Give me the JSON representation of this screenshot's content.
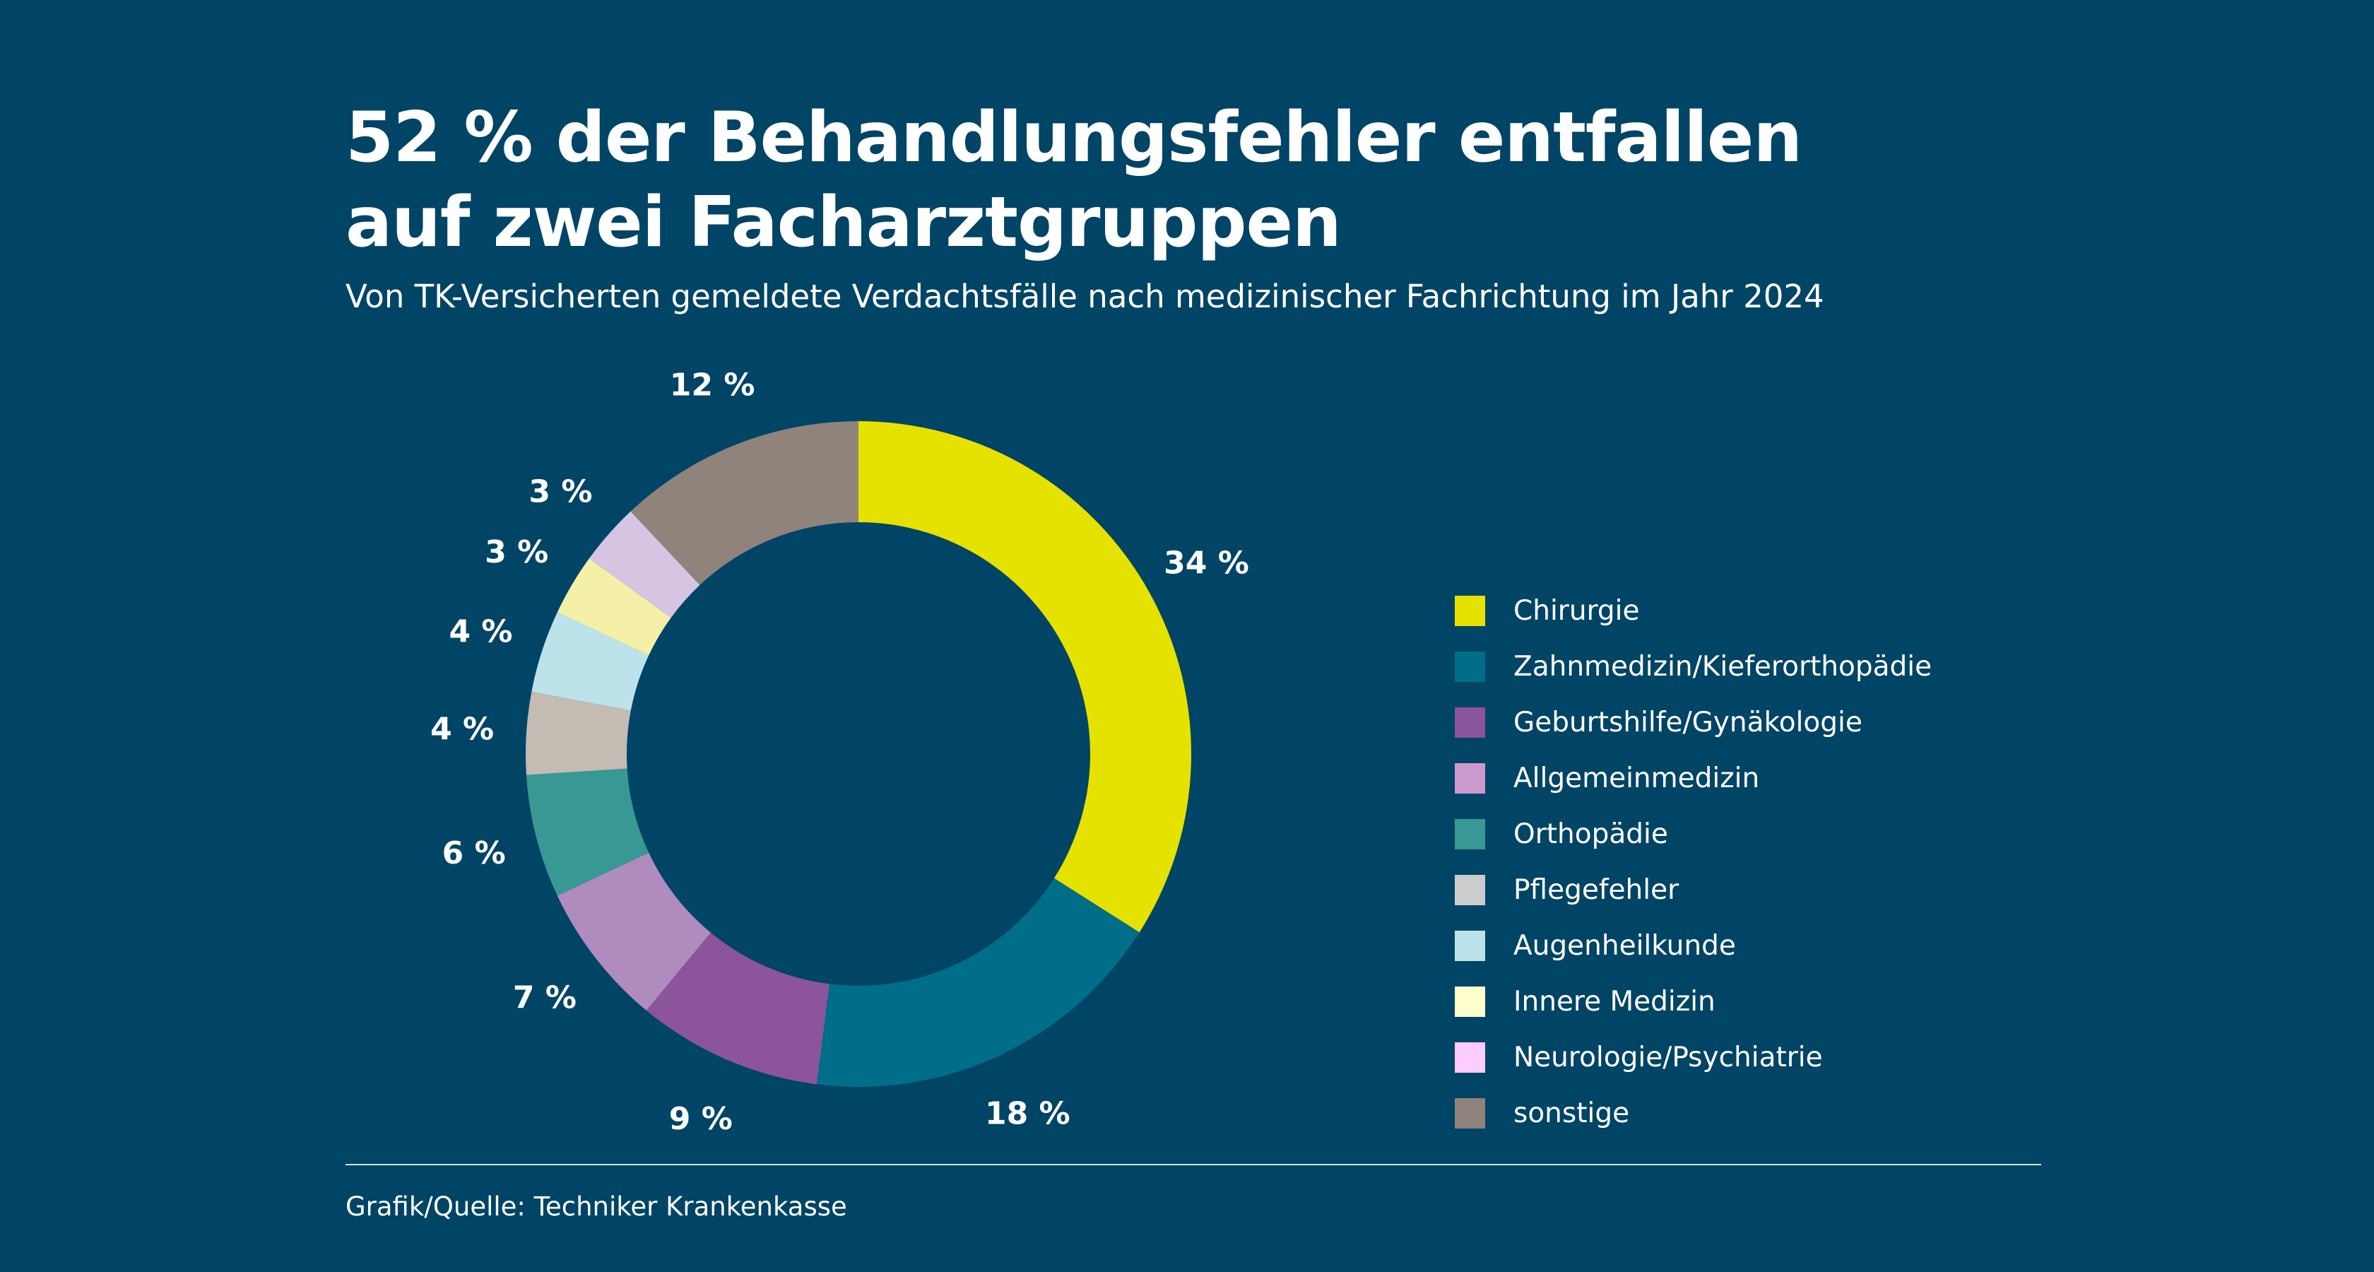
{
  "title_lines": [
    "52 % der Behandlungsfehler entfallen",
    "auf zwei Facharztgruppen"
  ],
  "subtitle": "Von TK-Versicherten gemeldete Verdachtsfälle nach medizinischer Fachrichtung im Jahr 2024",
  "source": "Grafik/Quelle: Techniker Krankenkasse",
  "colors": {
    "background": "#004466",
    "text": "#ffffff"
  },
  "chart_data": {
    "type": "pie",
    "variant": "donut",
    "start": "top, clockwise",
    "legend_placement": "right",
    "unit": "%",
    "categories": [
      "Chirurgie",
      "Zahnmedizin/Kieferorthopädie",
      "Geburtshilfe/Gynäkologie",
      "Allgemeinmedizin",
      "Orthopädie",
      "Pflegefehler",
      "Augenheilkunde",
      "Innere Medizin",
      "Neurologie/Psychiatrie",
      "sonstige"
    ],
    "values": [
      34,
      18,
      9,
      7,
      6,
      4,
      4,
      3,
      3,
      12
    ],
    "data_labels": [
      "34 %",
      "18 %",
      "9 %",
      "7 %",
      "6 %",
      "4 %",
      "4 %",
      "3 %",
      "3 %",
      "12 %"
    ],
    "slice_colors": [
      "#e6e200",
      "#006e88",
      "#8c549b",
      "#b08bbd",
      "#389894",
      "#c4bbb3",
      "#bde3ea",
      "#f5f0a8",
      "#d5c5e3",
      "#8f837b"
    ],
    "legend_colors": [
      "#e6e200",
      "#006e88",
      "#8c549b",
      "#cc99cc",
      "#389894",
      "#cccccc",
      "#bde3ea",
      "#ffffcc",
      "#ffccff",
      "#8f837b"
    ]
  }
}
